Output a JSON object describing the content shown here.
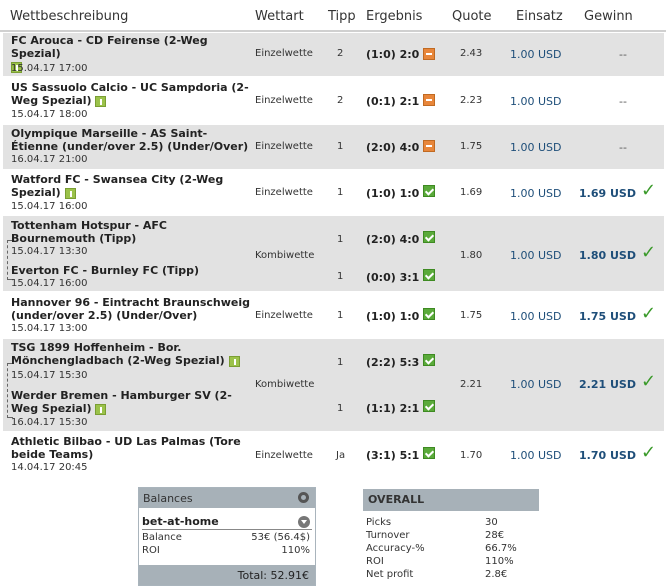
{
  "header": {
    "description": "Wettbeschreibung",
    "type": "Wettart",
    "tip": "Tipp",
    "result": "Ergebnis",
    "odds": "Quote",
    "stake": "Einsatz",
    "win": "Gewinn"
  },
  "bets": [
    {
      "match": "FC Arouca - CD Feirense (2-Weg Spezial)",
      "date": "15.04.17 17:00",
      "type": "Einzelwette",
      "tip": "2",
      "result": "(1:0) 2:0",
      "status": "lost",
      "odds": "2.43",
      "stake": "1.00 USD",
      "win": "--"
    },
    {
      "match": "US Sassuolo Calcio - UC Sampdoria (2-Weg Spezial)",
      "date": "15.04.17 18:00",
      "type": "Einzelwette",
      "tip": "2",
      "result": "(0:1) 2:1",
      "status": "lost",
      "odds": "2.23",
      "stake": "1.00 USD",
      "win": "--"
    },
    {
      "match": "Olympique Marseille - AS Saint-Étienne (under/over 2.5) (Under/Over)",
      "date": "16.04.17 21:00",
      "type": "Einzelwette",
      "tip": "1",
      "result": "(2:0) 4:0",
      "status": "lost",
      "odds": "1.75",
      "stake": "1.00 USD",
      "win": "--"
    },
    {
      "match": "Watford FC - Swansea City (2-Weg Spezial)",
      "date": "15.04.17 16:00",
      "type": "Einzelwette",
      "tip": "1",
      "result": "(1:0) 1:0",
      "status": "won",
      "odds": "1.69",
      "stake": "1.00 USD",
      "win": "1.69 USD"
    },
    {
      "type": "Kombiwette",
      "odds": "1.80",
      "stake": "1.00 USD",
      "win": "1.80 USD",
      "legs": [
        {
          "match": "Tottenham Hotspur - AFC Bournemouth (Tipp)",
          "date": "15.04.17 13:30",
          "tip": "1",
          "result": "(2:0) 4:0"
        },
        {
          "match": "Everton FC - Burnley FC (Tipp)",
          "date": "15.04.17 16:00",
          "tip": "1",
          "result": "(0:0) 3:1"
        }
      ]
    },
    {
      "match": "Hannover 96 - Eintracht Braunschweig (under/over 2.5) (Under/Over)",
      "date": "15.04.17 13:00",
      "type": "Einzelwette",
      "tip": "1",
      "result": "(1:0) 1:0",
      "status": "won",
      "odds": "1.75",
      "stake": "1.00 USD",
      "win": "1.75 USD"
    },
    {
      "type": "Kombiwette",
      "odds": "2.21",
      "stake": "1.00 USD",
      "win": "2.21 USD",
      "legs": [
        {
          "match": "TSG 1899 Hoffenheim - Bor. Mönchengladbach (2-Weg Spezial)",
          "date": "15.04.17 15:30",
          "tip": "1",
          "result": "(2:2) 5:3"
        },
        {
          "match": "Werder Bremen - Hamburger SV (2-Weg Spezial)",
          "date": "16.04.17 15:30",
          "tip": "1",
          "result": "(1:1) 2:1"
        }
      ]
    },
    {
      "match": "Athletic Bilbao - UD Las Palmas (Tore beide Teams)",
      "date": "14.04.17 20:45",
      "type": "Einzelwette",
      "tip": "Ja",
      "result": "(3:1) 5:1",
      "status": "won",
      "odds": "1.70",
      "stake": "1.00 USD",
      "win": "1.70 USD"
    }
  ],
  "balances": {
    "title": "Balances",
    "site": "bet-at-home",
    "balance_label": "Balance",
    "balance_value": "53€ (56.4$)",
    "roi_label": "ROI",
    "roi_value": "110%",
    "total": "Total: 52.91€"
  },
  "overall": {
    "title": "OVERALL",
    "rows": [
      {
        "label": "Picks",
        "value": "30"
      },
      {
        "label": "Turnover",
        "value": "28€"
      },
      {
        "label": "Accuracy-%",
        "value": "66.7%"
      },
      {
        "label": "ROI",
        "value": "110%"
      },
      {
        "label": "Net profit",
        "value": "2.8€"
      }
    ]
  },
  "colors": {
    "row_grey": "#e2e2e2",
    "stake_blue": "#1e4e79",
    "won_green": "#3a9a2a",
    "lost_orange": "#e8863a",
    "panel_grey": "#a7b1b8"
  }
}
